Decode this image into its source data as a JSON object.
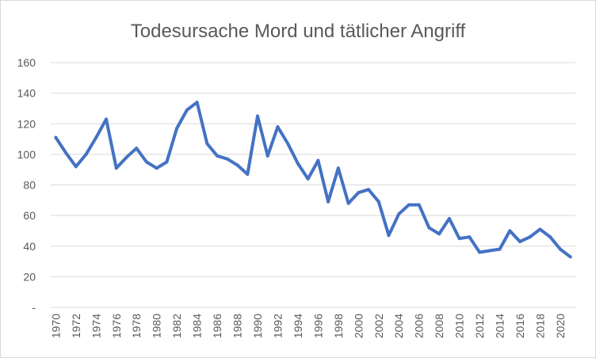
{
  "chart_data": {
    "type": "line",
    "title": "Todesursache Mord und tätlicher Angriff",
    "xlabel": "",
    "ylabel": "",
    "ylim": [
      0,
      160
    ],
    "ytick_step": 20,
    "ytick_labels": [
      "-",
      "20",
      "40",
      "60",
      "80",
      "100",
      "120",
      "140",
      "160"
    ],
    "grid": true,
    "legend": "none",
    "x_label_every": 2,
    "color": "#4472c4",
    "x": [
      1970,
      1971,
      1972,
      1973,
      1974,
      1975,
      1976,
      1977,
      1978,
      1979,
      1980,
      1981,
      1982,
      1983,
      1984,
      1985,
      1986,
      1987,
      1988,
      1989,
      1990,
      1991,
      1992,
      1993,
      1994,
      1995,
      1996,
      1997,
      1998,
      1999,
      2000,
      2001,
      2002,
      2003,
      2004,
      2005,
      2006,
      2007,
      2008,
      2009,
      2010,
      2011,
      2012,
      2013,
      2014,
      2015,
      2016,
      2017,
      2018,
      2019,
      2020,
      2021
    ],
    "values": [
      111,
      101,
      92,
      100,
      111,
      123,
      91,
      98,
      104,
      95,
      91,
      95,
      117,
      129,
      134,
      107,
      99,
      97,
      93,
      87,
      125,
      99,
      118,
      107,
      94,
      84,
      96,
      69,
      91,
      68,
      75,
      77,
      69,
      47,
      61,
      67,
      67,
      52,
      48,
      58,
      45,
      46,
      36,
      37,
      38,
      50,
      43,
      46,
      51,
      46,
      38,
      33
    ]
  }
}
